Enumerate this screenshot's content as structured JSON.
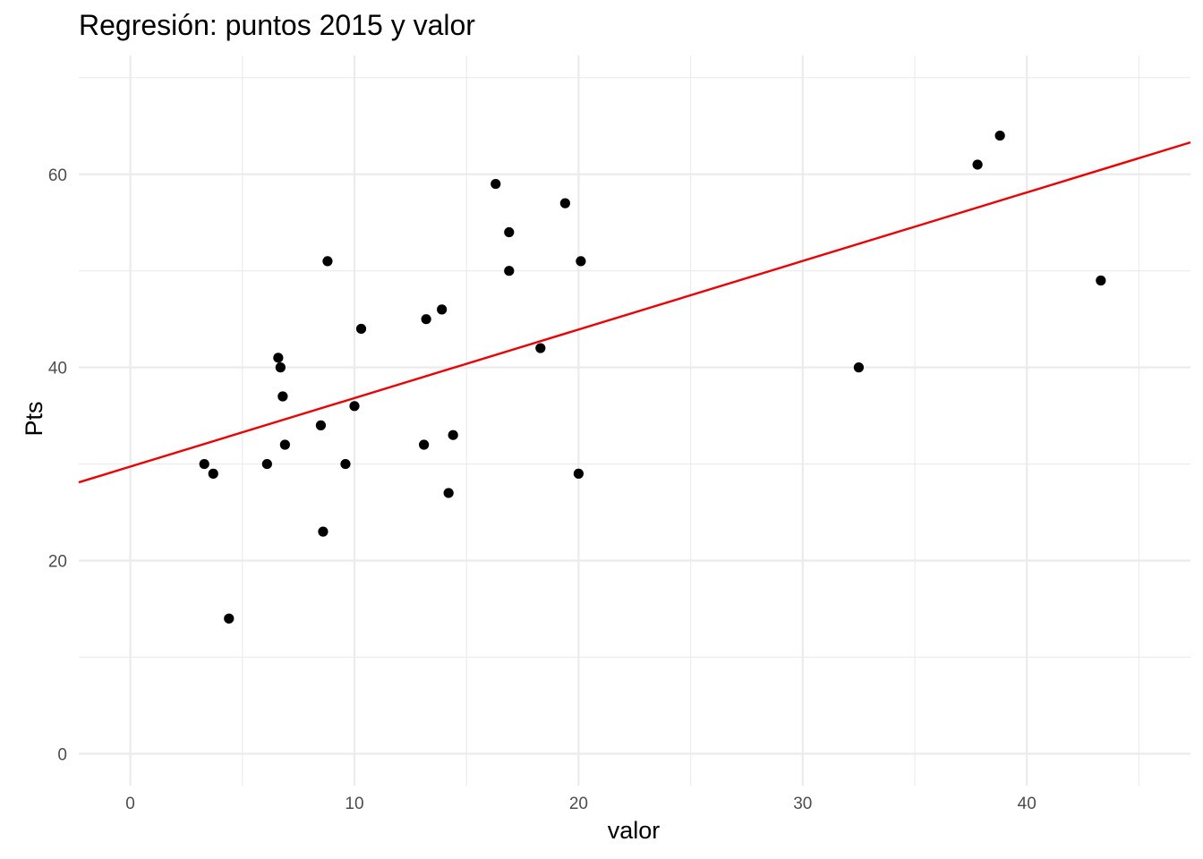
{
  "chart_data": {
    "type": "scatter",
    "title": "Regresión: puntos 2015 y valor",
    "xlabel": "valor",
    "ylabel": "Pts",
    "xlim": [
      -2.3,
      47.3
    ],
    "ylim": [
      -3.3,
      72.3
    ],
    "x_ticks": [
      0,
      10,
      20,
      30,
      40
    ],
    "x_tick_labels": [
      "0",
      "10",
      "20",
      "30",
      "40"
    ],
    "y_ticks": [
      0,
      20,
      40,
      60
    ],
    "y_tick_labels": [
      "0",
      "20",
      "40",
      "60"
    ],
    "grid": true,
    "colors": {
      "points": "#000000",
      "regression_line": "#ee0000",
      "grid": "#ebebeb",
      "tick_text": "#4d4d4d"
    },
    "points": [
      {
        "x": 3.3,
        "y": 30
      },
      {
        "x": 3.7,
        "y": 29
      },
      {
        "x": 4.4,
        "y": 14
      },
      {
        "x": 6.1,
        "y": 30
      },
      {
        "x": 6.6,
        "y": 41
      },
      {
        "x": 6.7,
        "y": 40
      },
      {
        "x": 6.8,
        "y": 37
      },
      {
        "x": 6.9,
        "y": 32
      },
      {
        "x": 8.5,
        "y": 34
      },
      {
        "x": 8.6,
        "y": 23
      },
      {
        "x": 8.8,
        "y": 51
      },
      {
        "x": 9.6,
        "y": 30
      },
      {
        "x": 10.0,
        "y": 36
      },
      {
        "x": 10.3,
        "y": 44
      },
      {
        "x": 13.1,
        "y": 32
      },
      {
        "x": 13.2,
        "y": 45
      },
      {
        "x": 13.9,
        "y": 46
      },
      {
        "x": 14.2,
        "y": 27
      },
      {
        "x": 14.4,
        "y": 33
      },
      {
        "x": 16.3,
        "y": 59
      },
      {
        "x": 16.9,
        "y": 54
      },
      {
        "x": 16.9,
        "y": 50
      },
      {
        "x": 18.3,
        "y": 42
      },
      {
        "x": 19.4,
        "y": 57
      },
      {
        "x": 20.0,
        "y": 29
      },
      {
        "x": 20.1,
        "y": 51
      },
      {
        "x": 32.5,
        "y": 40
      },
      {
        "x": 37.8,
        "y": 61
      },
      {
        "x": 38.8,
        "y": 64
      },
      {
        "x": 43.3,
        "y": 49
      }
    ],
    "regression_line": {
      "x": [
        -2.3,
        47.3
      ],
      "y": [
        28.1,
        63.3
      ]
    }
  }
}
